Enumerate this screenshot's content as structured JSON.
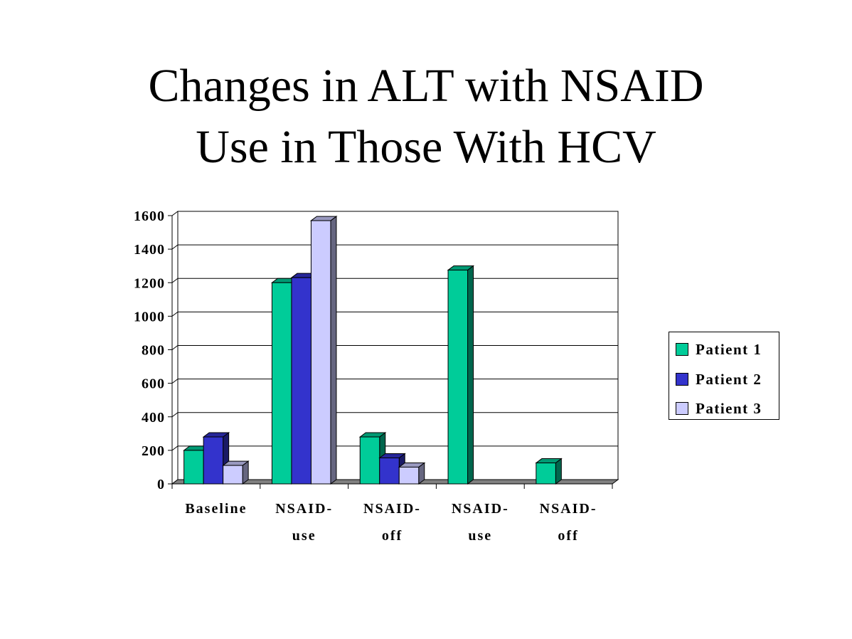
{
  "slide": {
    "title_line1": "Changes in ALT with NSAID",
    "title_line2": "Use in Those With HCV"
  },
  "legend": {
    "items": [
      {
        "label": "Patient 1",
        "color": "#00CC99"
      },
      {
        "label": "Patient 2",
        "color": "#3333CC"
      },
      {
        "label": "Patient 3",
        "color": "#CCCCFF"
      }
    ]
  },
  "chart_data": {
    "type": "bar",
    "style": "3d-clustered-column",
    "title": "Changes in ALT with NSAID Use in Those With HCV",
    "xlabel": "",
    "ylabel": "",
    "categories": [
      "Baseline",
      "NSAID-use",
      "NSAID-off",
      "NSAID-use",
      "NSAID-off"
    ],
    "category_lines": [
      [
        "Baseline"
      ],
      [
        "NSAID-",
        "use"
      ],
      [
        "NSAID-",
        "off"
      ],
      [
        "NSAID-",
        "use"
      ],
      [
        "NSAID-",
        "off"
      ]
    ],
    "series": [
      {
        "name": "Patient 1",
        "color": "#00CC99",
        "values": [
          200,
          1200,
          280,
          1275,
          125
        ]
      },
      {
        "name": "Patient 2",
        "color": "#3333CC",
        "values": [
          280,
          1230,
          155,
          null,
          null
        ]
      },
      {
        "name": "Patient 3",
        "color": "#CCCCFF",
        "values": [
          110,
          1570,
          100,
          null,
          null
        ]
      }
    ],
    "ylim": [
      0,
      1600
    ],
    "yticks": [
      0,
      200,
      400,
      600,
      800,
      1000,
      1200,
      1400,
      1600
    ],
    "grid": true,
    "legend_position": "right"
  }
}
